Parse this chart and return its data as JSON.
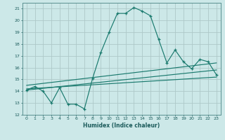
{
  "xlabel": "Humidex (Indice chaleur)",
  "background_color": "#cce8e8",
  "line_color": "#1a7a6e",
  "grid_color": "#b8d8d8",
  "xlim": [
    -0.5,
    23.5
  ],
  "ylim": [
    12,
    21.5
  ],
  "yticks": [
    12,
    13,
    14,
    15,
    16,
    17,
    18,
    19,
    20,
    21
  ],
  "xticks": [
    0,
    1,
    2,
    3,
    4,
    5,
    6,
    7,
    8,
    9,
    10,
    11,
    12,
    13,
    14,
    15,
    16,
    17,
    18,
    19,
    20,
    21,
    22,
    23
  ],
  "main_x": [
    0,
    1,
    2,
    3,
    4,
    5,
    6,
    7,
    8,
    9,
    10,
    11,
    12,
    13,
    14,
    15,
    16,
    17,
    18,
    19,
    20,
    21,
    22,
    23
  ],
  "main_y": [
    14.1,
    14.4,
    14.0,
    13.0,
    14.3,
    12.9,
    12.9,
    12.5,
    15.1,
    17.3,
    19.0,
    20.6,
    20.6,
    21.1,
    20.8,
    20.4,
    18.4,
    16.4,
    17.5,
    16.5,
    15.9,
    16.7,
    16.5,
    15.4
  ],
  "ref_line1_x": [
    0,
    23
  ],
  "ref_line1_y": [
    14.1,
    15.8
  ],
  "ref_line2_x": [
    0,
    23
  ],
  "ref_line2_y": [
    14.5,
    16.4
  ],
  "ref_line3_x": [
    0,
    23
  ],
  "ref_line3_y": [
    14.2,
    15.2
  ]
}
